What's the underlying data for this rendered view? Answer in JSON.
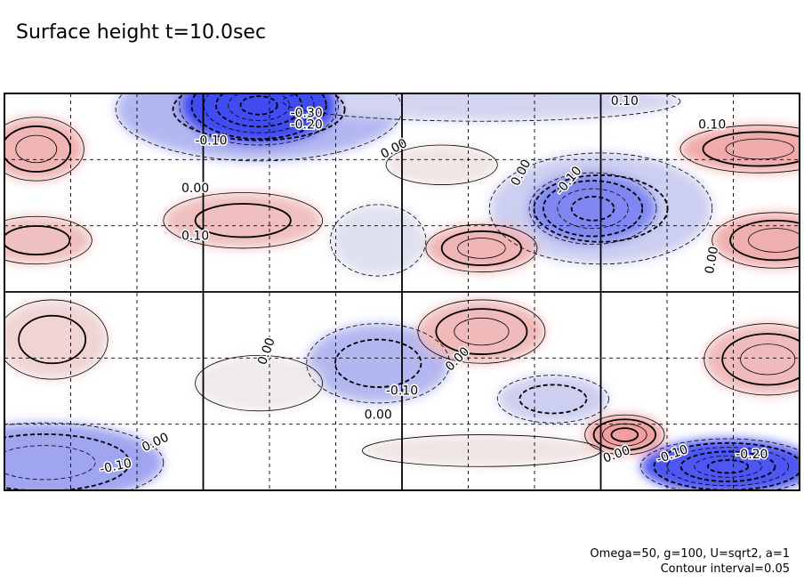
{
  "title": "Surface height t=10.0sec",
  "annotations": {
    "params": "Omega=50, g=100, U=sqrt2, a=1",
    "interval": "Contour interval=0.05"
  },
  "colors": {
    "negative": "#4a55e6",
    "positive": "#e88a8a",
    "frame": "#000000"
  },
  "chart_data": {
    "type": "heatmap",
    "title": "Surface height t=10.0sec",
    "xlabel": "",
    "ylabel": "",
    "contour_interval": 0.05,
    "grid": "dashed",
    "contour_labels": [
      "-0.30",
      "-0.20",
      "0.10",
      "0.10",
      "-0.10",
      "0.00",
      "0.00",
      "0.00",
      "-0.10",
      "0.10",
      "0.00",
      "0.00",
      "0.00",
      "-0.10",
      "0.00",
      "0.00",
      "-0.10",
      "0.00",
      "-0.10",
      "-0.20"
    ],
    "regions": [
      {
        "cx": 0.32,
        "cy": 0.97,
        "rx": 0.1,
        "ry": 0.1,
        "v": -0.32
      },
      {
        "cx": 0.32,
        "cy": 0.96,
        "rx": 0.18,
        "ry": 0.13,
        "v": -0.12
      },
      {
        "cx": 0.6,
        "cy": 0.98,
        "rx": 0.25,
        "ry": 0.05,
        "v": -0.07
      },
      {
        "cx": 0.04,
        "cy": 0.86,
        "rx": 0.06,
        "ry": 0.08,
        "v": 0.14
      },
      {
        "cx": 0.95,
        "cy": 0.86,
        "rx": 0.1,
        "ry": 0.06,
        "v": 0.16
      },
      {
        "cx": 0.3,
        "cy": 0.68,
        "rx": 0.1,
        "ry": 0.07,
        "v": 0.12
      },
      {
        "cx": 0.04,
        "cy": 0.63,
        "rx": 0.07,
        "ry": 0.06,
        "v": 0.12
      },
      {
        "cx": 0.97,
        "cy": 0.63,
        "rx": 0.08,
        "ry": 0.07,
        "v": 0.15
      },
      {
        "cx": 0.74,
        "cy": 0.71,
        "rx": 0.08,
        "ry": 0.09,
        "v": -0.2
      },
      {
        "cx": 0.75,
        "cy": 0.71,
        "rx": 0.14,
        "ry": 0.14,
        "v": -0.08
      },
      {
        "cx": 0.6,
        "cy": 0.61,
        "rx": 0.07,
        "ry": 0.06,
        "v": 0.14
      },
      {
        "cx": 0.47,
        "cy": 0.63,
        "rx": 0.06,
        "ry": 0.09,
        "v": -0.05
      },
      {
        "cx": 0.55,
        "cy": 0.82,
        "rx": 0.07,
        "ry": 0.05,
        "v": 0.05
      },
      {
        "cx": 0.06,
        "cy": 0.38,
        "rx": 0.07,
        "ry": 0.1,
        "v": 0.08
      },
      {
        "cx": 0.47,
        "cy": 0.32,
        "rx": 0.09,
        "ry": 0.1,
        "v": -0.12
      },
      {
        "cx": 0.6,
        "cy": 0.4,
        "rx": 0.08,
        "ry": 0.08,
        "v": 0.13
      },
      {
        "cx": 0.69,
        "cy": 0.23,
        "rx": 0.07,
        "ry": 0.06,
        "v": -0.08
      },
      {
        "cx": 0.96,
        "cy": 0.33,
        "rx": 0.08,
        "ry": 0.09,
        "v": 0.13
      },
      {
        "cx": 0.78,
        "cy": 0.14,
        "rx": 0.05,
        "ry": 0.05,
        "v": 0.18
      },
      {
        "cx": 0.91,
        "cy": 0.06,
        "rx": 0.11,
        "ry": 0.07,
        "v": -0.28
      },
      {
        "cx": 0.05,
        "cy": 0.07,
        "rx": 0.15,
        "ry": 0.1,
        "v": -0.15
      },
      {
        "cx": 0.6,
        "cy": 0.1,
        "rx": 0.15,
        "ry": 0.04,
        "v": 0.05
      },
      {
        "cx": 0.32,
        "cy": 0.27,
        "rx": 0.08,
        "ry": 0.07,
        "v": 0.04
      }
    ]
  }
}
